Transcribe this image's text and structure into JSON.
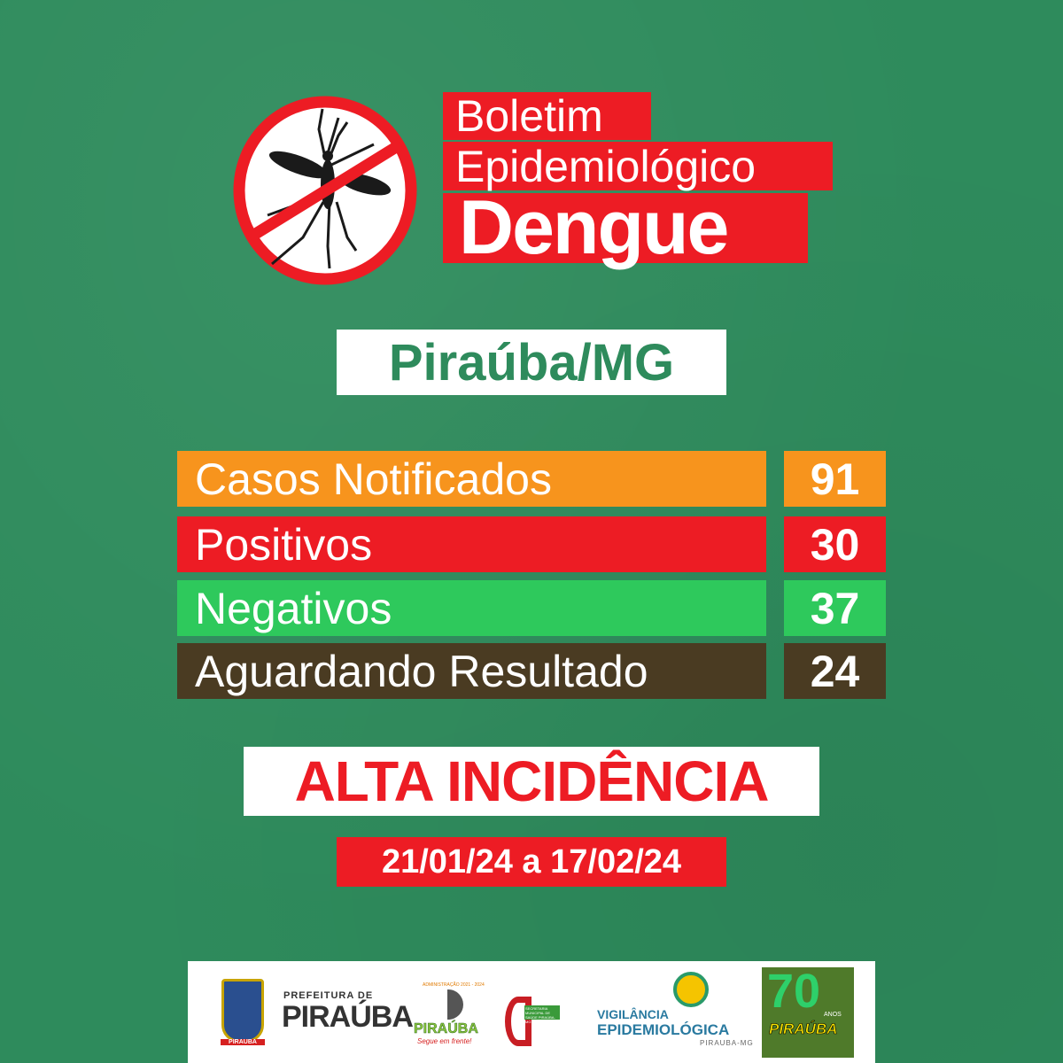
{
  "header": {
    "title_line1": "Boletim",
    "title_line2": "Epidemiológico",
    "title_line3": "Dengue",
    "icon": "no-mosquito-icon"
  },
  "location": "Piraúba/MG",
  "stats": [
    {
      "label": "Casos Notificados",
      "value": "91",
      "color": "#f7941d"
    },
    {
      "label": "Positivos",
      "value": "30",
      "color": "#ed1c24"
    },
    {
      "label": "Negativos",
      "value": "37",
      "color": "#2ec95c"
    },
    {
      "label": "Aguardando Resultado",
      "value": "24",
      "color": "#4a3b22"
    }
  ],
  "alert": "ALTA INCIDÊNCIA",
  "period": "21/01/24 a 17/02/24",
  "footer": {
    "prefeitura_small": "PREFEITURA DE",
    "prefeitura_big": "PIRAÚBA",
    "admin_slogan_top": "ADMINISTRAÇÃO 2021 - 2024",
    "admin_name": "PIRAÚBA",
    "admin_slogan": "Segue em frente!",
    "secretaria": "SECRETARIA MUNICIPAL DE SAÚDE PIRAÚBA-MG",
    "vigilancia_1": "VIGILÂNCIA",
    "vigilancia_2": "EPIDEMIOLÓGICA",
    "vigilancia_3": "PIRAUBA-MG",
    "anniv_number": "70",
    "anniv_anos": "ANOS",
    "anniv_name": "PIRAÚBA",
    "crest_label": "PIRAUBA"
  },
  "colors": {
    "background": "#2e8b5c",
    "red": "#ed1c24",
    "white": "#ffffff"
  }
}
